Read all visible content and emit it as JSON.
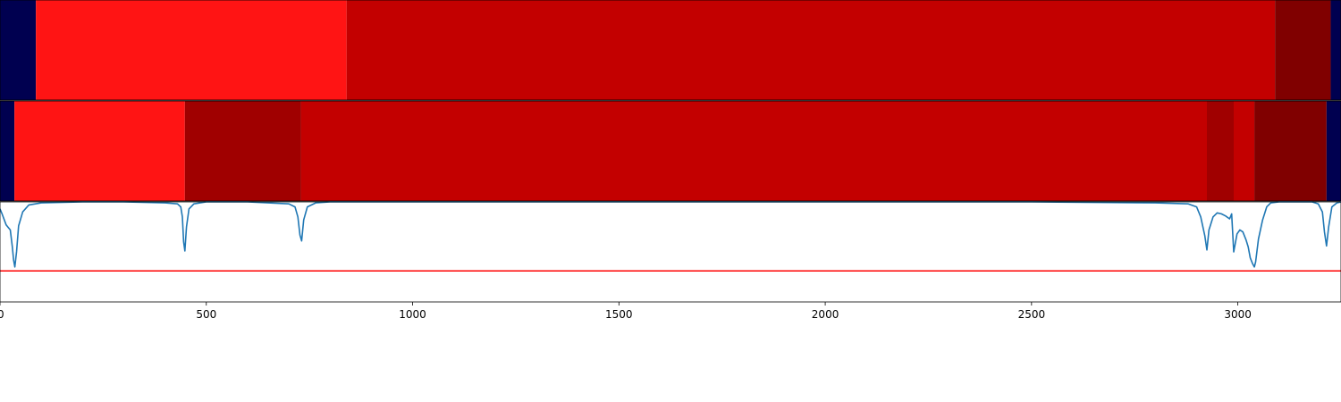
{
  "chart_data": [
    {
      "type": "heatmap",
      "xlim": [
        0,
        3250
      ],
      "colors": {
        "navy": "#000050",
        "bright_red": "#ff1414",
        "red": "#c30000",
        "dark_red": "#a00000",
        "maroon": "#800000"
      },
      "segments": [
        {
          "start": 0,
          "end": 87,
          "color": "#000050"
        },
        {
          "start": 87,
          "end": 840,
          "color": "#ff1414"
        },
        {
          "start": 840,
          "end": 3090,
          "color": "#c30000"
        },
        {
          "start": 3090,
          "end": 3225,
          "color": "#800000"
        },
        {
          "start": 3225,
          "end": 3250,
          "color": "#000050"
        }
      ]
    },
    {
      "type": "heatmap",
      "xlim": [
        0,
        3250
      ],
      "segments": [
        {
          "start": 0,
          "end": 35,
          "color": "#000050"
        },
        {
          "start": 35,
          "end": 448,
          "color": "#ff1414"
        },
        {
          "start": 448,
          "end": 730,
          "color": "#a00000"
        },
        {
          "start": 730,
          "end": 2925,
          "color": "#c30000"
        },
        {
          "start": 2925,
          "end": 2990,
          "color": "#a00000"
        },
        {
          "start": 2990,
          "end": 3040,
          "color": "#c30000"
        },
        {
          "start": 3040,
          "end": 3215,
          "color": "#800000"
        },
        {
          "start": 3215,
          "end": 3250,
          "color": "#000050"
        }
      ]
    },
    {
      "type": "line",
      "xlim": [
        0,
        3250
      ],
      "ylim": [
        0,
        1
      ],
      "line_color": "#1f77b4",
      "threshold": {
        "value": 0.31,
        "color": "#ff0000"
      },
      "x": [
        0,
        5,
        15,
        25,
        30,
        33,
        36,
        40,
        45,
        55,
        70,
        100,
        200,
        300,
        400,
        430,
        438,
        442,
        445,
        448,
        452,
        458,
        470,
        500,
        600,
        700,
        715,
        722,
        727,
        731,
        736,
        745,
        765,
        800,
        1000,
        1500,
        2000,
        2500,
        2800,
        2880,
        2900,
        2910,
        2920,
        2925,
        2930,
        2940,
        2950,
        2960,
        2970,
        2980,
        2985,
        2990,
        2998,
        3005,
        3012,
        3020,
        3025,
        3030,
        3036,
        3040,
        3043,
        3050,
        3060,
        3070,
        3080,
        3100,
        3150,
        3180,
        3195,
        3205,
        3210,
        3215,
        3220,
        3228,
        3240,
        3250
      ],
      "y": [
        0.93,
        0.88,
        0.77,
        0.72,
        0.55,
        0.42,
        0.35,
        0.5,
        0.76,
        0.9,
        0.97,
        0.99,
        1.0,
        1.0,
        0.99,
        0.98,
        0.95,
        0.85,
        0.6,
        0.51,
        0.75,
        0.93,
        0.98,
        1.0,
        1.0,
        0.98,
        0.95,
        0.85,
        0.67,
        0.61,
        0.82,
        0.95,
        0.99,
        1.0,
        1.0,
        1.0,
        1.0,
        1.0,
        0.99,
        0.98,
        0.95,
        0.85,
        0.66,
        0.52,
        0.72,
        0.85,
        0.89,
        0.88,
        0.86,
        0.83,
        0.88,
        0.5,
        0.68,
        0.72,
        0.7,
        0.62,
        0.55,
        0.44,
        0.38,
        0.35,
        0.4,
        0.63,
        0.82,
        0.95,
        0.99,
        1.0,
        1.0,
        1.0,
        0.98,
        0.9,
        0.7,
        0.56,
        0.75,
        0.95,
        0.99,
        1.0
      ]
    }
  ],
  "xaxis": {
    "ticks": [
      {
        "value": 0,
        "label": "0"
      },
      {
        "value": 500,
        "label": "500"
      },
      {
        "value": 1000,
        "label": "1000"
      },
      {
        "value": 1500,
        "label": "1500"
      },
      {
        "value": 2000,
        "label": "2000"
      },
      {
        "value": 2500,
        "label": "2500"
      },
      {
        "value": 3000,
        "label": "3000"
      }
    ]
  }
}
